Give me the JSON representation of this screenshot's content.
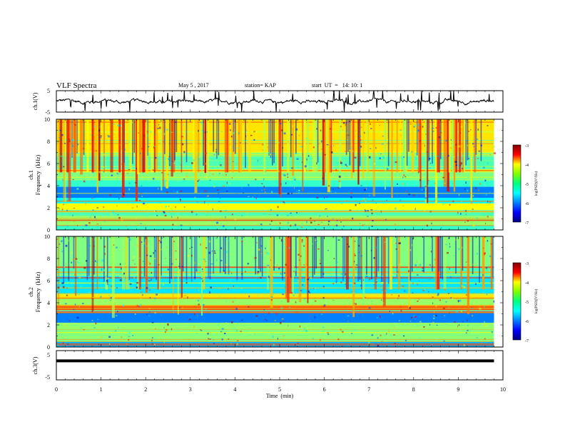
{
  "header": {
    "title": "VLF Spectra",
    "date": "May 5 , 2017",
    "station": "station= KAP",
    "start": "start  UT  =   14: 10: 1"
  },
  "chart_data": [
    {
      "type": "line",
      "name": "ch1-waveform",
      "ylabel": "ch.1(V)",
      "ylim": [
        -5,
        5
      ],
      "yticks": [
        "5",
        "-5"
      ],
      "xlim": [
        0,
        10
      ],
      "series": [
        {
          "color": "#000000",
          "description": "noisy waveform around 0 V, spikes up to about ±5 V"
        }
      ]
    },
    {
      "type": "heatmap",
      "name": "ch1-spectrogram",
      "ylabel": "Frequency  (kHz)",
      "ylabel_channel": "ch.1",
      "ylim": [
        0,
        10
      ],
      "yticks": [
        "0",
        "2",
        "4",
        "6",
        "8",
        "10"
      ],
      "xlim": [
        0,
        9.8
      ],
      "colorbar": {
        "label": "log(PSD)(V²/Hz)",
        "range": [
          -7,
          -3
        ],
        "ticks": [
          "-3",
          "-4",
          "-5",
          "-6",
          "-7"
        ]
      },
      "bands": [
        {
          "kHz": [
            0.0,
            0.4
          ],
          "level": -5.3
        },
        {
          "kHz": [
            0.4,
            1.2
          ],
          "level": -4.9
        },
        {
          "kHz": [
            1.2,
            1.8
          ],
          "level": -5.2
        },
        {
          "kHz": [
            1.8,
            2.4
          ],
          "level": -4.5
        },
        {
          "kHz": [
            2.4,
            2.9
          ],
          "level": -5.5
        },
        {
          "kHz": [
            2.9,
            3.9
          ],
          "level": -6.0
        },
        {
          "kHz": [
            3.9,
            4.5
          ],
          "level": -5.3
        },
        {
          "kHz": [
            4.5,
            5.2
          ],
          "level": -5.0
        },
        {
          "kHz": [
            5.2,
            5.5
          ],
          "level": -4.7
        },
        {
          "kHz": [
            5.5,
            7.0
          ],
          "level": -5.2
        },
        {
          "kHz": [
            7.0,
            10.0
          ],
          "level": -4.4
        }
      ]
    },
    {
      "type": "heatmap",
      "name": "ch2-spectrogram",
      "ylabel": "Frequency  (kHz)",
      "ylabel_channel": "ch.2",
      "ylim": [
        0,
        10
      ],
      "yticks": [
        "0",
        "2",
        "4",
        "6",
        "8",
        "10"
      ],
      "xlim": [
        0,
        9.8
      ],
      "colorbar": {
        "label": "log(PSD)(V²/Hz)",
        "range": [
          -7,
          -3
        ],
        "ticks": [
          "-3",
          "-4",
          "-5",
          "-6",
          "-7"
        ]
      },
      "bands": [
        {
          "kHz": [
            0.0,
            0.5
          ],
          "level": -5.8
        },
        {
          "kHz": [
            0.5,
            1.6
          ],
          "level": -5.0
        },
        {
          "kHz": [
            1.6,
            2.2
          ],
          "level": -4.9
        },
        {
          "kHz": [
            2.2,
            3.2
          ],
          "level": -6.0
        },
        {
          "kHz": [
            3.2,
            3.7
          ],
          "level": -3.8
        },
        {
          "kHz": [
            3.7,
            4.4
          ],
          "level": -4.9
        },
        {
          "kHz": [
            4.4,
            4.8
          ],
          "level": -4.4
        },
        {
          "kHz": [
            4.8,
            6.4
          ],
          "level": -5.6
        },
        {
          "kHz": [
            6.4,
            7.2
          ],
          "level": -5.2
        },
        {
          "kHz": [
            7.2,
            10.0
          ],
          "level": -5.0
        }
      ]
    },
    {
      "type": "line",
      "name": "ch3-waveform",
      "ylabel": "ch.3(V)",
      "ylim": [
        -5,
        5
      ],
      "yticks": [
        "5",
        "-5"
      ],
      "xlim": [
        0,
        10
      ],
      "xlabel": "Time  (min)",
      "xticks": [
        "0",
        "1",
        "2",
        "3",
        "4",
        "5",
        "6",
        "7",
        "8",
        "9",
        "10"
      ],
      "series": [
        {
          "color": "#000000",
          "x": [
            0,
            9.8
          ],
          "y": [
            1.5,
            1.5
          ]
        }
      ]
    }
  ]
}
